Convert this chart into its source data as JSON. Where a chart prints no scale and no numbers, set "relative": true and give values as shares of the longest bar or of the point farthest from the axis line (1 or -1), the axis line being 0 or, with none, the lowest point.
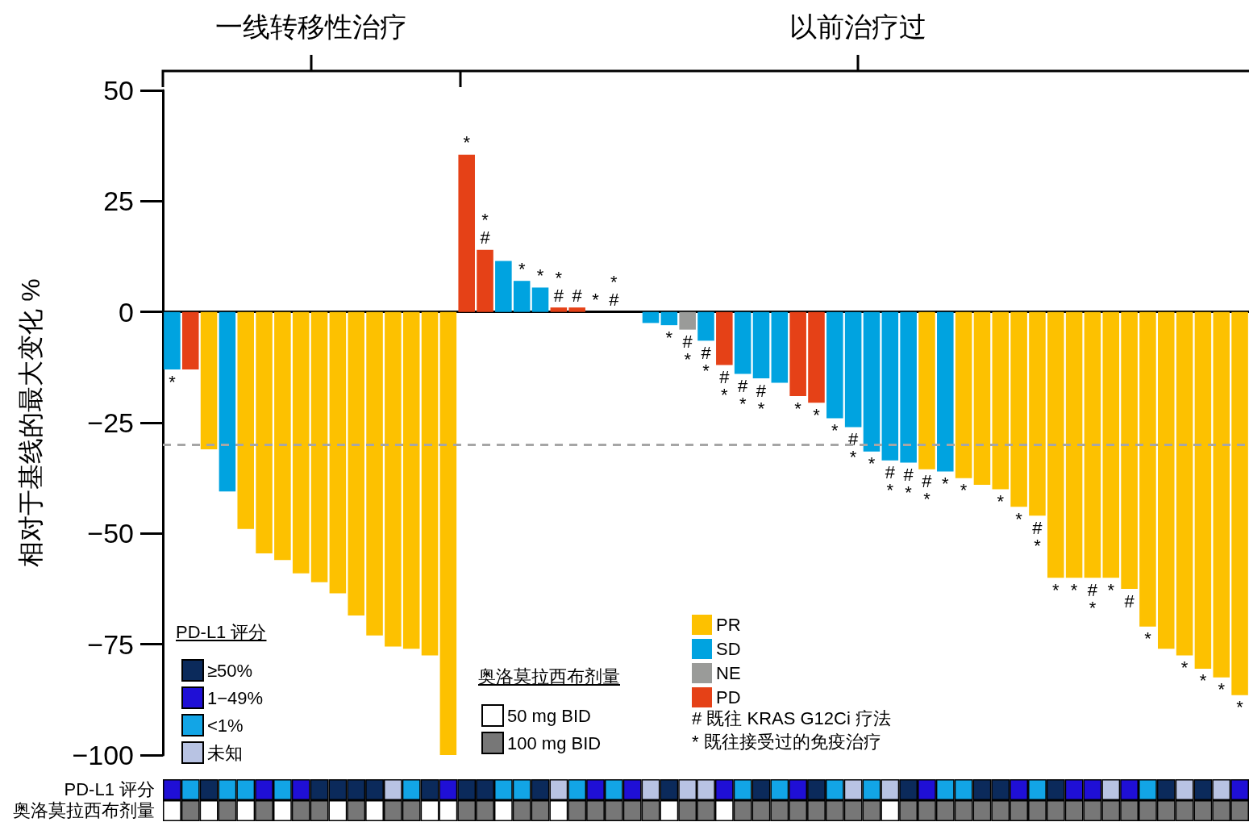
{
  "chart_data": [
    {
      "type": "bar",
      "stacked": true,
      "ylabel": "相对于基线的最大变化 %",
      "categories": [
        null,
        null,
        null,
        null,
        null,
        null,
        null,
        null,
        null,
        null,
        null,
        null,
        null,
        null,
        null,
        null,
        null,
        null,
        null,
        null,
        null,
        null,
        null,
        null,
        null,
        null,
        null,
        null,
        null,
        null,
        null,
        null,
        null,
        null,
        null,
        null,
        null,
        null,
        null,
        null,
        null,
        null,
        null,
        null,
        null,
        null,
        null,
        null,
        null,
        null,
        null,
        null,
        null,
        null,
        null,
        null,
        null,
        null,
        null
      ],
      "series": [
        {
          "name": "PR",
          "color": "#fdc100",
          "values": [
            null,
            null,
            -31,
            null,
            -49,
            -54.5,
            -56,
            -59,
            -61,
            -63.5,
            -68.5,
            -73,
            -75.5,
            -76,
            -77.5,
            -100,
            null,
            null,
            null,
            null,
            null,
            null,
            null,
            null,
            null,
            null,
            null,
            null,
            null,
            null,
            null,
            null,
            null,
            null,
            null,
            null,
            null,
            null,
            null,
            null,
            null,
            -35.5,
            null,
            -37.5,
            -39,
            -40,
            -44,
            -46,
            -60,
            -60,
            -60,
            -60,
            -62.5,
            -71,
            -76,
            -77.5,
            -80.5,
            -82.5,
            -86.5
          ],
          "value_labels": [
            null,
            null,
            null,
            null,
            null,
            null,
            null,
            null,
            null,
            null,
            null,
            null,
            null,
            null,
            null,
            null,
            null,
            null,
            null,
            null,
            null,
            null,
            null,
            null,
            null,
            null,
            null,
            null,
            null,
            null,
            null,
            null,
            null,
            null,
            null,
            null,
            null,
            null,
            null,
            null,
            null,
            "#\n*",
            null,
            "*",
            null,
            "*",
            "*",
            "#\n*",
            "*",
            "*",
            "#\n*",
            "*",
            "#",
            "*",
            null,
            "*",
            "*",
            "*",
            "*"
          ]
        },
        {
          "name": "SD",
          "color": "#00a3e0",
          "values": [
            -13,
            null,
            null,
            -40.5,
            null,
            null,
            null,
            null,
            null,
            null,
            null,
            null,
            null,
            null,
            null,
            null,
            null,
            null,
            11.5,
            7,
            5.5,
            null,
            null,
            0,
            0,
            0,
            -2.5,
            -3,
            null,
            -6.5,
            null,
            -14,
            -15,
            -16,
            null,
            null,
            -24,
            -26,
            -31.5,
            -33.5,
            -34,
            null,
            -36,
            null,
            null,
            null,
            null,
            null,
            null,
            null,
            null,
            null,
            null,
            null,
            null,
            null,
            null,
            null,
            null
          ],
          "value_labels": [
            "*",
            null,
            null,
            null,
            null,
            null,
            null,
            null,
            null,
            null,
            null,
            null,
            null,
            null,
            null,
            null,
            null,
            null,
            null,
            "*",
            "*",
            null,
            null,
            "*",
            "*\n#",
            null,
            null,
            "*",
            null,
            "#\n*",
            null,
            "#\n*",
            "#\n*",
            null,
            null,
            null,
            "*",
            "#\n*",
            "*",
            "#\n*",
            "#\n*",
            null,
            "*",
            null,
            null,
            null,
            null,
            null,
            null,
            null,
            null,
            null,
            null,
            null,
            null,
            null,
            null,
            null,
            null
          ]
        },
        {
          "name": "NE",
          "color": "#9a9b99",
          "values": [
            null,
            null,
            null,
            null,
            null,
            null,
            null,
            null,
            null,
            null,
            null,
            null,
            null,
            null,
            null,
            null,
            null,
            null,
            null,
            null,
            null,
            null,
            null,
            null,
            null,
            null,
            null,
            null,
            -4,
            null,
            null,
            null,
            null,
            null,
            null,
            null,
            null,
            null,
            null,
            null,
            null,
            null,
            null,
            null,
            null,
            null,
            null,
            null,
            null,
            null,
            null,
            null,
            null,
            null,
            null,
            null,
            null,
            null,
            null
          ],
          "value_labels": [
            null,
            null,
            null,
            null,
            null,
            null,
            null,
            null,
            null,
            null,
            null,
            null,
            null,
            null,
            null,
            null,
            null,
            null,
            null,
            null,
            null,
            null,
            null,
            null,
            null,
            null,
            null,
            null,
            "#\n*",
            null,
            null,
            null,
            null,
            null,
            null,
            null,
            null,
            null,
            null,
            null,
            null,
            null,
            null,
            null,
            null,
            null,
            null,
            null,
            null,
            null,
            null,
            null,
            null,
            null,
            null,
            null,
            null,
            null,
            null
          ]
        },
        {
          "name": "PD",
          "color": "#e54117",
          "values": [
            null,
            -13,
            null,
            null,
            null,
            null,
            null,
            null,
            null,
            null,
            null,
            null,
            null,
            null,
            null,
            null,
            35.5,
            14,
            null,
            null,
            null,
            1,
            1,
            null,
            null,
            null,
            null,
            null,
            null,
            null,
            -12,
            null,
            null,
            null,
            -19,
            -20.5,
            null,
            null,
            null,
            null,
            null,
            null,
            null,
            null,
            null,
            null,
            null,
            null,
            null,
            null,
            null,
            null,
            null,
            null,
            null,
            null,
            null,
            null,
            null
          ],
          "value_labels": [
            null,
            null,
            null,
            null,
            null,
            null,
            null,
            null,
            null,
            null,
            null,
            null,
            null,
            null,
            null,
            null,
            "*",
            "*\n#",
            null,
            null,
            null,
            "*\n#",
            "#",
            null,
            null,
            null,
            null,
            null,
            null,
            null,
            "#\n*",
            null,
            null,
            null,
            "*",
            "*",
            null,
            null,
            null,
            null,
            null,
            null,
            null,
            null,
            null,
            null,
            null,
            null,
            null,
            null,
            null,
            null,
            null,
            null,
            null,
            null,
            null,
            null,
            null
          ]
        }
      ],
      "ylim": [
        -100,
        50
      ],
      "yticks": [
        -100,
        -75,
        -50,
        -25,
        0,
        25,
        50
      ],
      "ref_lines": [
        {
          "axis": "y",
          "value": -30,
          "color": "#a6a6a6",
          "line_style": "dashed"
        }
      ],
      "legend": "bottom",
      "annotations": [
        "一线转移性治疗",
        "以前治疗过",
        "# 既往 KRAS G12Ci 疗法",
        "* 既往接受过的免疫治疗"
      ]
    },
    {
      "type": "bar",
      "relative": true,
      "stacked": true,
      "ylabel": "PD-L1 评分",
      "legend_title": "PD-L1 评分",
      "legend": "top left",
      "categories": [
        null,
        null,
        null,
        null,
        null,
        null,
        null,
        null,
        null,
        null,
        null,
        null,
        null,
        null,
        null,
        null,
        null,
        null,
        null,
        null,
        null,
        null,
        null,
        null,
        null,
        null,
        null,
        null,
        null,
        null,
        null,
        null,
        null,
        null,
        null,
        null,
        null,
        null,
        null,
        null,
        null,
        null,
        null,
        null,
        null,
        null,
        null,
        null,
        null,
        null,
        null,
        null,
        null,
        null,
        null,
        null,
        null,
        null,
        null
      ],
      "series": [
        {
          "name": "≥50%",
          "color": "#0b2a5b",
          "values": [
            null,
            null,
            1,
            null,
            null,
            null,
            null,
            null,
            1,
            1,
            1,
            1,
            null,
            null,
            1,
            null,
            1,
            1,
            null,
            null,
            1,
            null,
            null,
            null,
            null,
            null,
            null,
            1,
            null,
            null,
            null,
            null,
            1,
            null,
            null,
            1,
            null,
            null,
            null,
            null,
            1,
            null,
            null,
            null,
            1,
            1,
            null,
            null,
            1,
            null,
            null,
            null,
            null,
            null,
            1,
            null,
            1,
            null,
            null
          ]
        },
        {
          "name": "1−49%",
          "color": "#1f0fd6",
          "values": [
            1,
            null,
            null,
            null,
            null,
            1,
            null,
            1,
            null,
            null,
            null,
            null,
            null,
            null,
            null,
            1,
            null,
            null,
            null,
            null,
            null,
            null,
            null,
            1,
            null,
            1,
            null,
            null,
            null,
            null,
            1,
            null,
            null,
            null,
            1,
            null,
            null,
            null,
            null,
            null,
            null,
            1,
            null,
            null,
            null,
            null,
            1,
            null,
            null,
            1,
            1,
            null,
            1,
            null,
            null,
            null,
            null,
            null,
            1
          ]
        },
        {
          "name": "<1%",
          "color": "#12a5e6",
          "values": [
            null,
            1,
            null,
            1,
            1,
            null,
            1,
            null,
            null,
            null,
            null,
            null,
            null,
            1,
            null,
            null,
            null,
            null,
            1,
            1,
            null,
            null,
            1,
            null,
            1,
            null,
            null,
            null,
            null,
            null,
            null,
            1,
            null,
            1,
            null,
            null,
            1,
            null,
            1,
            null,
            null,
            null,
            1,
            1,
            null,
            null,
            null,
            1,
            null,
            null,
            null,
            null,
            null,
            1,
            null,
            null,
            null,
            null,
            null
          ]
        },
        {
          "name": "未知",
          "color": "#b8c3e3",
          "values": [
            null,
            null,
            null,
            null,
            null,
            null,
            null,
            null,
            null,
            null,
            null,
            null,
            1,
            null,
            null,
            null,
            null,
            null,
            null,
            null,
            null,
            1,
            null,
            null,
            null,
            null,
            1,
            null,
            1,
            1,
            null,
            null,
            null,
            null,
            null,
            null,
            null,
            1,
            null,
            1,
            null,
            null,
            null,
            null,
            null,
            null,
            null,
            null,
            null,
            null,
            null,
            1,
            null,
            null,
            null,
            1,
            null,
            1,
            null
          ]
        }
      ]
    },
    {
      "type": "bar",
      "relative": true,
      "stacked": true,
      "ylabel": "奥洛莫拉西布剂量",
      "legend_title": "奥洛莫拉西布剂量",
      "legend": "top left",
      "categories": [
        null,
        null,
        null,
        null,
        null,
        null,
        null,
        null,
        null,
        null,
        null,
        null,
        null,
        null,
        null,
        null,
        null,
        null,
        null,
        null,
        null,
        null,
        null,
        null,
        null,
        null,
        null,
        null,
        null,
        null,
        null,
        null,
        null,
        null,
        null,
        null,
        null,
        null,
        null,
        null,
        null,
        null,
        null,
        null,
        null,
        null,
        null,
        null,
        null,
        null,
        null,
        null,
        null,
        null,
        null,
        null,
        null,
        null,
        null
      ],
      "series": [
        {
          "name": "50 mg BID",
          "color": "#ffffff",
          "values": [
            1,
            null,
            1,
            null,
            1,
            null,
            1,
            null,
            null,
            1,
            null,
            1,
            null,
            null,
            1,
            1,
            null,
            null,
            1,
            null,
            null,
            1,
            null,
            null,
            null,
            null,
            null,
            1,
            null,
            null,
            1,
            null,
            null,
            null,
            null,
            null,
            null,
            null,
            null,
            1,
            null,
            null,
            null,
            null,
            null,
            null,
            null,
            null,
            null,
            null,
            null,
            null,
            null,
            null,
            null,
            null,
            null,
            null,
            null
          ]
        },
        {
          "name": "100 mg BID",
          "color": "#777777",
          "values": [
            null,
            1,
            null,
            1,
            null,
            1,
            null,
            1,
            1,
            null,
            1,
            null,
            1,
            1,
            null,
            null,
            1,
            1,
            null,
            1,
            1,
            null,
            1,
            1,
            1,
            1,
            1,
            null,
            1,
            1,
            null,
            1,
            1,
            1,
            1,
            1,
            1,
            1,
            1,
            null,
            1,
            1,
            1,
            1,
            1,
            1,
            1,
            1,
            1,
            1,
            1,
            1,
            1,
            1,
            1,
            1,
            1,
            1,
            1
          ]
        }
      ]
    }
  ]
}
